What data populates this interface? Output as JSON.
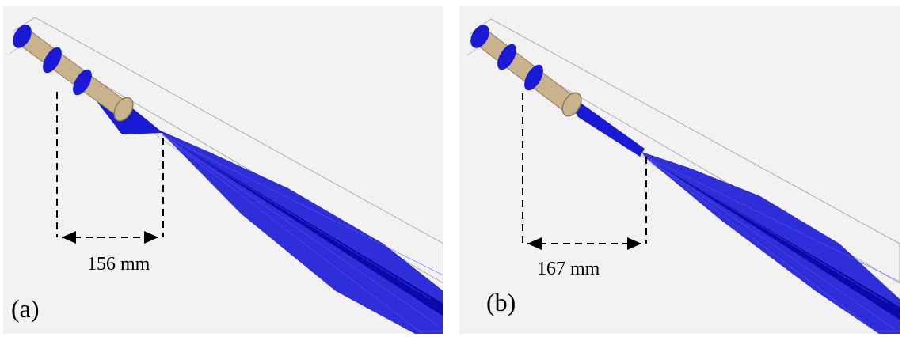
{
  "panels": [
    {
      "id": "a",
      "label": "(a)",
      "distance_label": "156 mm",
      "distance_value_mm": 156
    },
    {
      "id": "b",
      "label": "(b)",
      "distance_label": "167 mm",
      "distance_value_mm": 167
    }
  ],
  "colors": {
    "beam": "#1a1ad6",
    "beam_dark": "#0a0aa8",
    "lens_body": "#c9b38c",
    "lens_edge": "#8c7a58",
    "housing_outline": "#a8a8a8",
    "dimension_lines": "#000000",
    "background": "#f2f2f2"
  }
}
